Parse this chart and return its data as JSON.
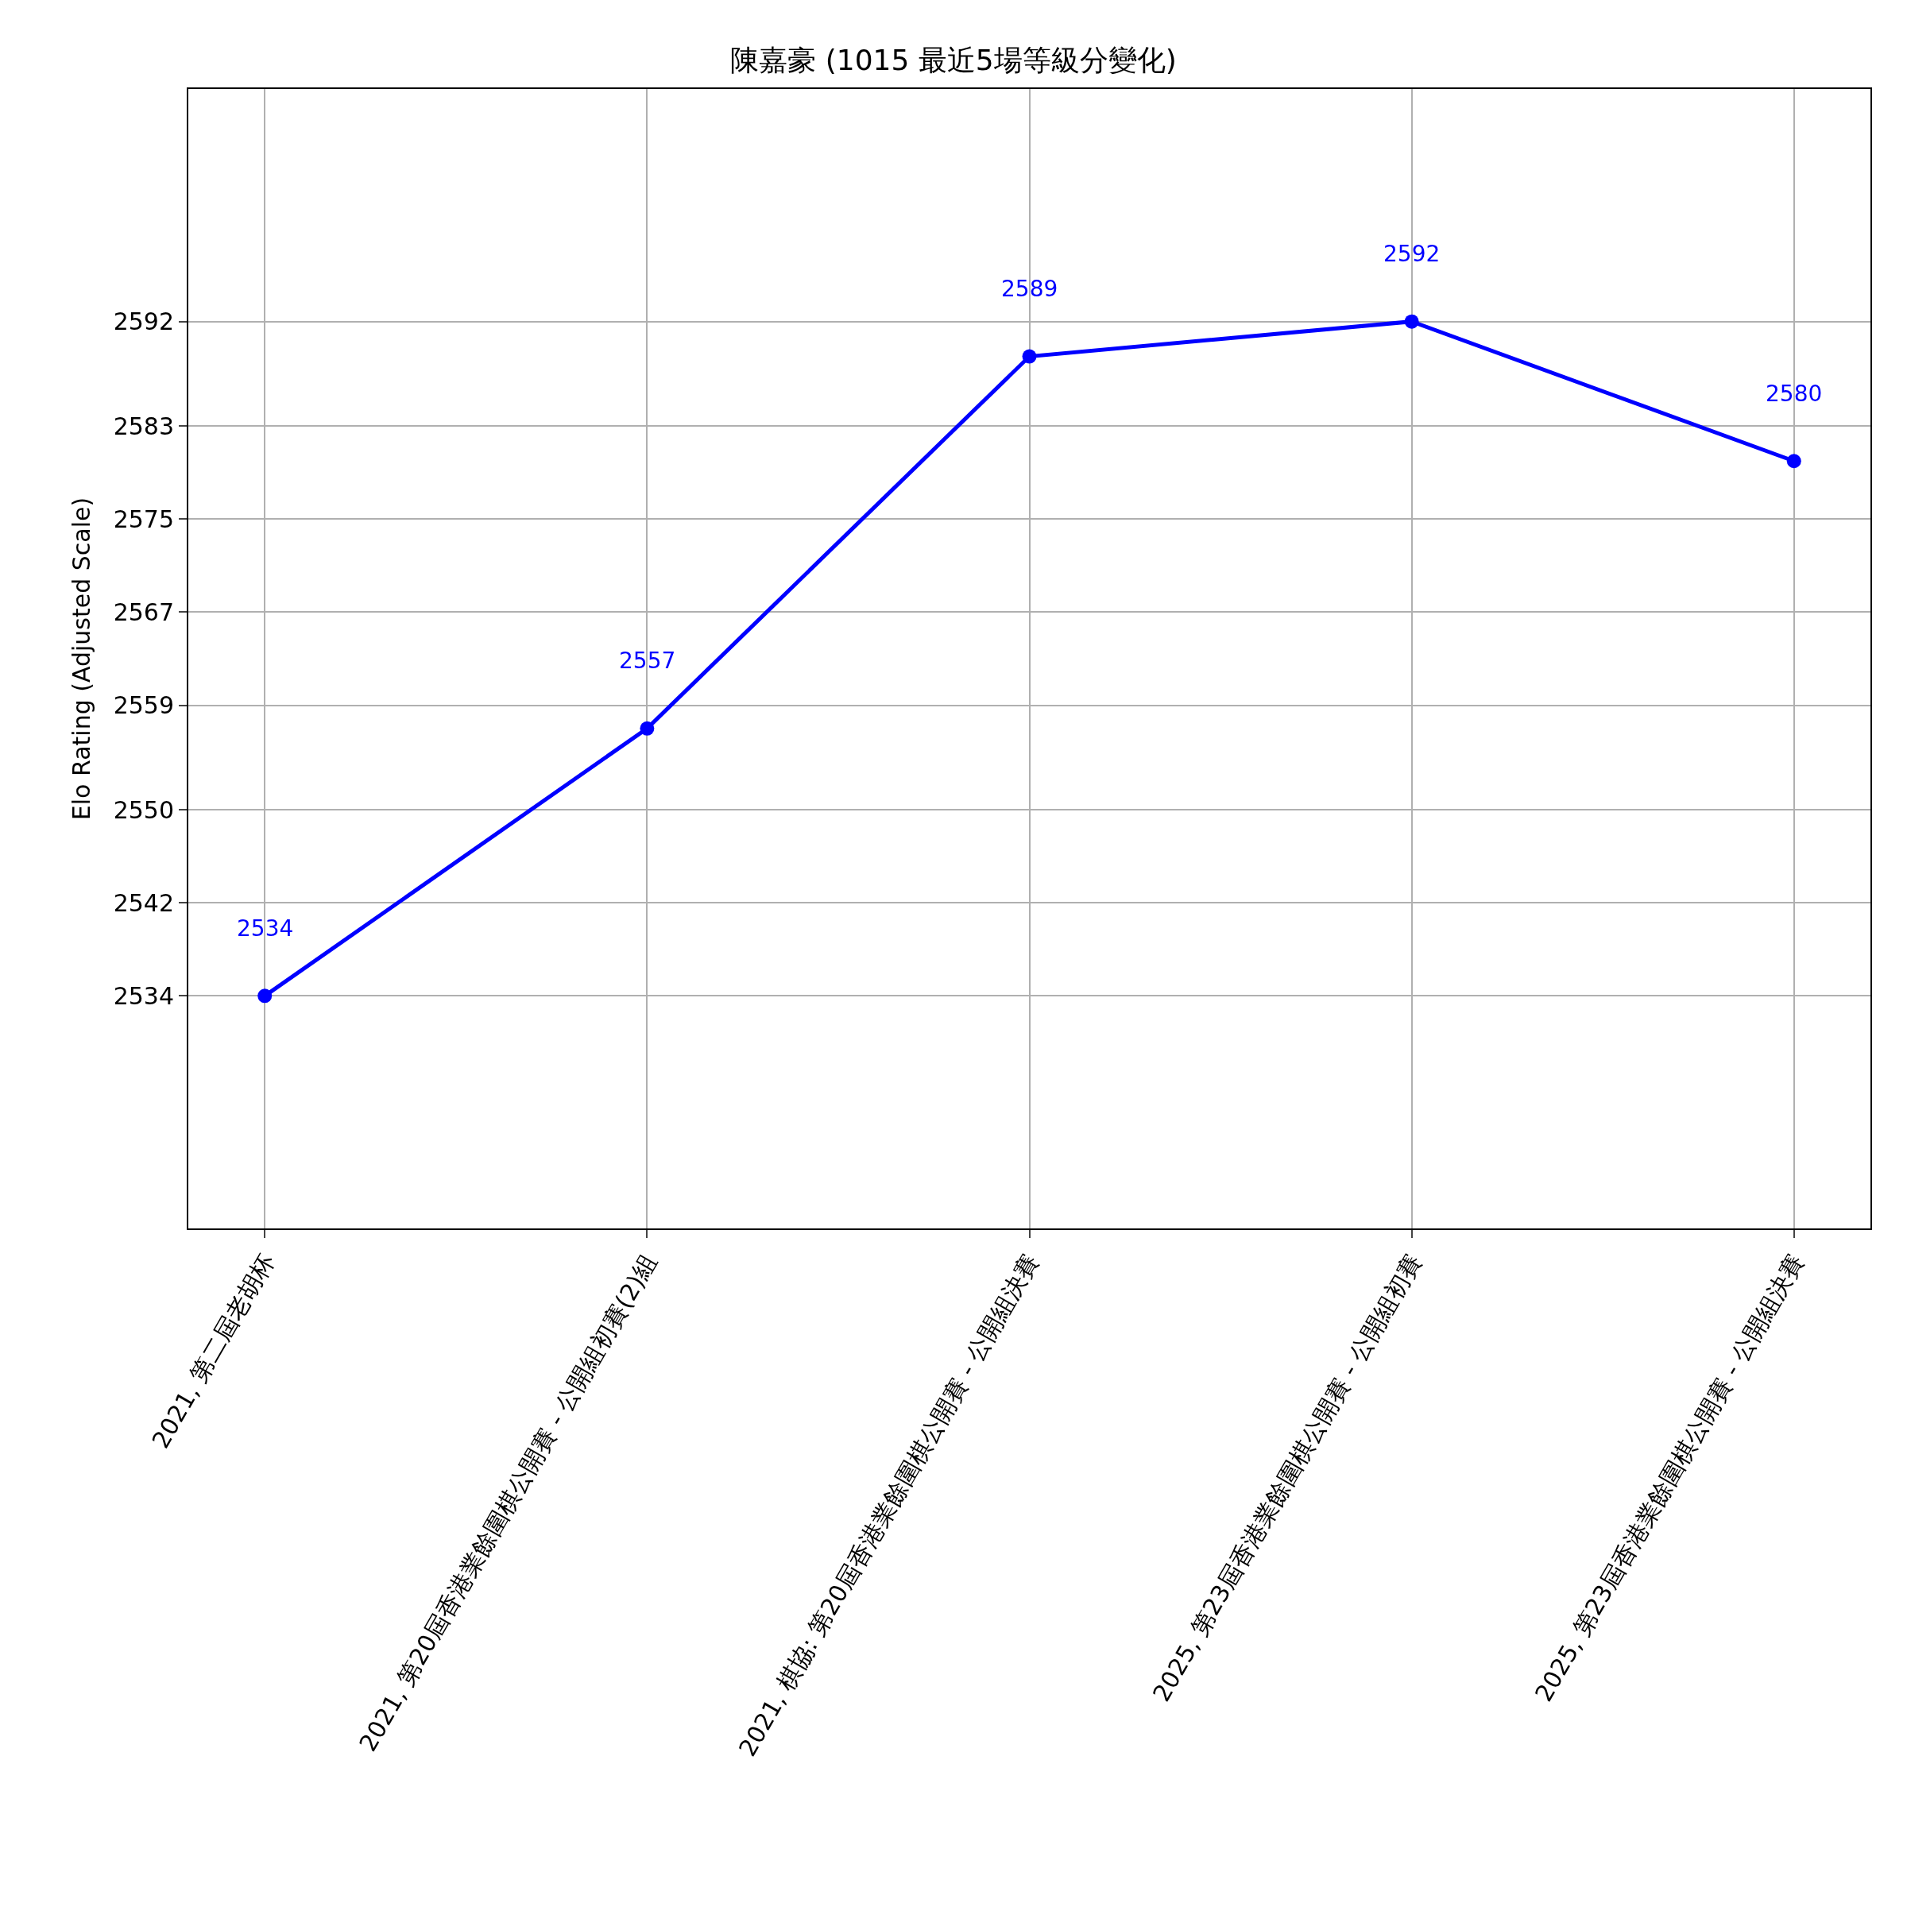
{
  "chart_data": {
    "type": "line",
    "title": "陳嘉豪 (1015 最近5場等級分變化)",
    "ylabel": "Elo Rating (Adjusted Scale)",
    "categories": [
      "2021, 第二屆老胡杯",
      "2021, 第20屆香港業餘圍棋公開賽 - 公開組初賽(2)組",
      "2021, 棋協: 第20屆香港業餘圍棋公開賽 - 公開組決賽",
      "2025, 第23屆香港業餘圍棋公開賽 - 公開組初賽",
      "2025, 第23屆香港業餘圍棋公開賽 - 公開組決賽"
    ],
    "series": [
      {
        "color": "#0000ff",
        "values": [
          2534,
          2557,
          2589,
          2592,
          2580
        ]
      }
    ],
    "ylim": [
      2514,
      2612
    ],
    "yticks": [
      2534,
      2542,
      2550,
      2559,
      2567,
      2575,
      2583,
      2592
    ],
    "grid": true,
    "marker": "circle",
    "line_style": "solid",
    "data_labels": true
  }
}
